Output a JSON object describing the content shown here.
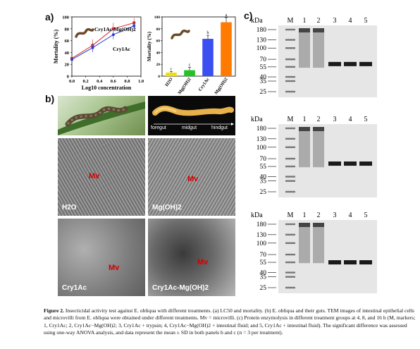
{
  "panels": {
    "a": "a)",
    "b": "b)",
    "c": "c)"
  },
  "chart_data": [
    {
      "type": "line",
      "xlabel": "Log10 concentration",
      "ylabel": "Mortality (%)",
      "xlim": [
        0.0,
        1.0
      ],
      "ylim": [
        0,
        100
      ],
      "xticks": [
        "0.0",
        "0.2",
        "0.4",
        "0.6",
        "0.8",
        "1.0"
      ],
      "yticks": [
        "0",
        "20",
        "40",
        "60",
        "80",
        "100"
      ],
      "series": [
        {
          "name": "Cry1Ac-Mg(OH)2",
          "color": "#d22a2a",
          "x": [
            0.0,
            0.3,
            0.6,
            0.9
          ],
          "y": [
            30,
            52,
            80,
            90
          ],
          "err": [
            4,
            10,
            10,
            8
          ]
        },
        {
          "name": "Cry1Ac",
          "color": "#2a3fd2",
          "x": [
            0.0,
            0.3,
            0.6,
            0.9
          ],
          "y": [
            28,
            48,
            70,
            85
          ],
          "err": [
            4,
            8,
            8,
            6
          ]
        }
      ]
    },
    {
      "type": "bar",
      "ylabel": "Mortality (%)",
      "ylim": [
        0,
        100
      ],
      "yticks": [
        "0",
        "20",
        "40",
        "60",
        "80",
        "100"
      ],
      "categories": [
        "H2O",
        "Mg(OH)2",
        "Cry1Ac",
        "Cry1Ac-Mg(OH)2"
      ],
      "values": [
        6,
        10,
        63,
        91
      ],
      "errors": [
        2,
        5,
        6,
        8
      ],
      "letters": [
        "c",
        "c",
        "b",
        "a"
      ],
      "colors": [
        "#f0e000",
        "#22c322",
        "#3b4ff0",
        "#ff7a00"
      ]
    }
  ],
  "gut": {
    "foregut": "foregut",
    "midgut": "midgut",
    "hindgut": "hindgut"
  },
  "em_panels": [
    {
      "label": "H2O",
      "mv": "Mv"
    },
    {
      "label": "Mg(OH)2",
      "mv": "Mv"
    },
    {
      "label": "Cry1Ac",
      "mv": "Mv"
    },
    {
      "label": "Cry1Ac-Mg(OH)2",
      "mv": "Mv"
    }
  ],
  "gels": [
    {
      "kda": "kDa",
      "lanes": [
        "M",
        "1",
        "2",
        "3",
        "4",
        "5"
      ],
      "markers": [
        "180",
        "130",
        "100",
        "70",
        "55",
        "40",
        "35",
        "25"
      ]
    },
    {
      "kda": "kDa",
      "lanes": [
        "M",
        "1",
        "2",
        "3",
        "4",
        "5"
      ],
      "markers": [
        "180",
        "130",
        "100",
        "70",
        "55",
        "40",
        "35",
        "25"
      ]
    },
    {
      "kda": "kDa",
      "lanes": [
        "M",
        "1",
        "2",
        "3",
        "4",
        "5"
      ],
      "markers": [
        "180",
        "130",
        "100",
        "70",
        "55",
        "40",
        "35",
        "25"
      ]
    }
  ],
  "caption": {
    "figure": "Figure 2.",
    "text": "Insecticidal activity test against E. obliqua with different treatments. (a) LC50 and mortality. (b) E. obliqua and their guts. TEM images of intestinal epithelial cells and microvilli from E. obliqua were obtained under different treatments. Mv = microvilli. (c) Protein enzymolysis in different treatment groups at 4, 8, and 16 h (M, markers; 1, Cry1Ac; 2, Cry1Ac−Mg(OH)2; 3, Cry1Ac + trypsin; 4, Cry1Ac−Mg(OH)2 + intestinal fluid; and 5, Cry1Ac + intestinal fluid). The significant difference was assessed using one-way ANOVA analysis, and data represent the mean ± SD in both panels b and c (n = 3 per treatment)."
  }
}
